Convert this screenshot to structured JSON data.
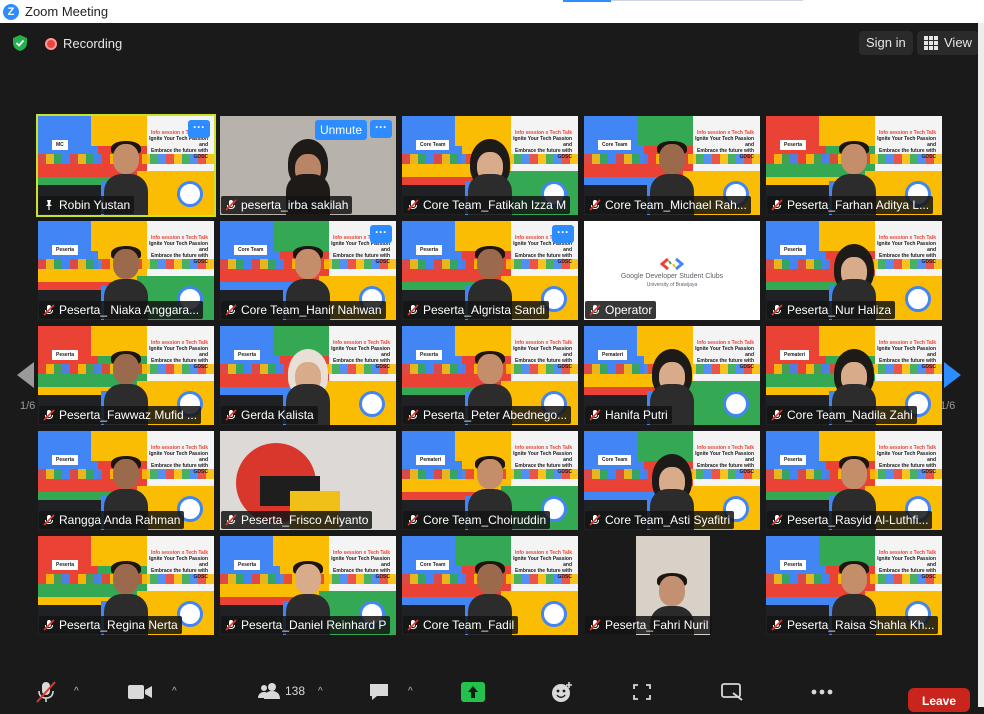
{
  "window": {
    "title": "Zoom Meeting",
    "app_icon": "zoom-logo"
  },
  "topbar": {
    "security_icon": "shield-check-icon",
    "recording_label": "Recording",
    "signin_label": "Sign in",
    "view_label": "View"
  },
  "gallery": {
    "page_left": "1/6",
    "page_right": "1/6",
    "tiles": [
      {
        "name": "Robin Yustan",
        "role": "MC",
        "muted": false,
        "pinned": true,
        "active": true,
        "has_menu": true
      },
      {
        "name": "peserta_irba sakilah",
        "muted": true,
        "unmute_label": "Unmute",
        "has_menu": true
      },
      {
        "name": "Core Team_Fatikah Izza M",
        "role": "Core Team",
        "muted": true
      },
      {
        "name": "Core Team_Michael Rah...",
        "role": "Core Team",
        "muted": true
      },
      {
        "name": "Peserta_Farhan Aditya L...",
        "role": "Peserta",
        "muted": true
      },
      {
        "name": "Peserta_ Niaka Anggara...",
        "role": "Peserta",
        "muted": true
      },
      {
        "name": "Core Team_Hanif Nahwan",
        "role": "Core Team",
        "muted": true,
        "has_menu": true
      },
      {
        "name": "Peserta_Algrista Sandi",
        "role": "Peserta",
        "muted": true,
        "has_menu": true
      },
      {
        "name": "Operator",
        "muted": true,
        "card_title": "Google Developer Student Clubs",
        "card_subtitle": "University of Brawijaya"
      },
      {
        "name": "Peserta_Nur Haliza",
        "role": "Peserta",
        "muted": true
      },
      {
        "name": "Peserta_Fawwaz Mufid ...",
        "role": "Peserta",
        "muted": true
      },
      {
        "name": "Gerda Kalista",
        "role": "Peserta",
        "muted": true
      },
      {
        "name": "Peserta_Peter Abednego...",
        "role": "Peserta",
        "muted": true
      },
      {
        "name": "Hanifa Putri",
        "role": "Pemateri",
        "muted": true
      },
      {
        "name": "Core Team_Nadila Zahi",
        "role": "Pemateri",
        "muted": true
      },
      {
        "name": "Rangga Anda Rahman",
        "role": "Peserta",
        "muted": true
      },
      {
        "name": "Peserta_Frisco Ariyanto",
        "muted": true
      },
      {
        "name": "Core Team_Choiruddin",
        "role": "Pemateri",
        "muted": true
      },
      {
        "name": "Core Team_Asti Syafitri",
        "role": "Core Team",
        "muted": true
      },
      {
        "name": "Peserta_Rasyid Al-Luthfi...",
        "role": "Peserta",
        "muted": true
      },
      {
        "name": "Peserta_Regina Nerta",
        "role": "Peserta",
        "muted": true
      },
      {
        "name": "Peserta_Daniel Reinhard P",
        "role": "Peserta",
        "muted": true
      },
      {
        "name": "Core Team_Fadil",
        "role": "Core Team",
        "muted": true
      },
      {
        "name": "Peserta_Fahri Nuril",
        "muted": true
      },
      {
        "name": "Peserta_Raisa Shahla Kh...",
        "role": "Peserta",
        "muted": true
      }
    ],
    "banner_line1": "Info session x Tech Talk",
    "banner_line2": "Ignite Your Tech Passion and",
    "banner_line3": "Embrace the future with GDSC"
  },
  "toolbar": {
    "participants_count": "138",
    "leave_label": "Leave",
    "icons": [
      "mic-muted-icon",
      "video-icon",
      "participants-icon",
      "chat-icon",
      "share-screen-icon",
      "reactions-icon",
      "apps-icon",
      "whiteboard-icon",
      "more-icon"
    ]
  },
  "colors": {
    "accent": "#2d8cff",
    "active_speaker": "#c9e22a",
    "leave": "#c9251d"
  }
}
